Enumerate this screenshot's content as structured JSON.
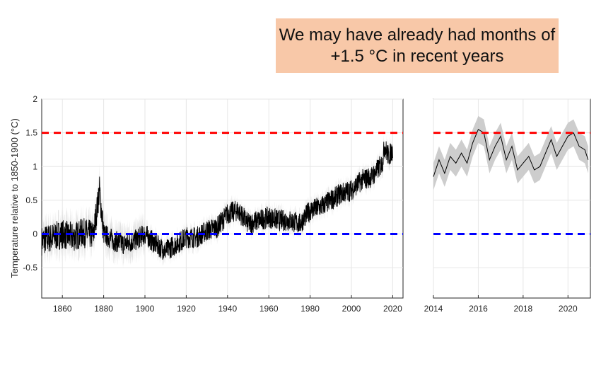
{
  "callout": {
    "line1": "We may have already had months of",
    "line2": "+1.5 °C in recent years",
    "background": "#f8c8a8"
  },
  "chart_data": [
    {
      "type": "line",
      "ylabel": "Temperature relative to 1850-1900 (°C)",
      "xlim": [
        1850,
        2025
      ],
      "ylim": [
        -0.95,
        2
      ],
      "xticks": [
        "1860",
        "1880",
        "1900",
        "1920",
        "1940",
        "1960",
        "1980",
        "2000",
        "2020"
      ],
      "yticks": [
        "2",
        "1.5",
        "1",
        "0.5",
        "0",
        "-0.5"
      ],
      "grid": true,
      "reference_lines": [
        {
          "y": 1.5,
          "color": "#ff0000",
          "style": "dashed"
        },
        {
          "y": 0,
          "color": "#0000ff",
          "style": "dashed"
        }
      ],
      "series": [
        {
          "color": "#000000",
          "uncertainty_color": "#c8c8c8",
          "x": [
            1850,
            1855,
            1860,
            1865,
            1870,
            1875,
            1878,
            1880,
            1885,
            1890,
            1895,
            1900,
            1905,
            1910,
            1915,
            1920,
            1925,
            1930,
            1935,
            1940,
            1945,
            1950,
            1955,
            1960,
            1965,
            1970,
            1975,
            1980,
            1985,
            1990,
            1995,
            2000,
            2005,
            2010,
            2015,
            2016,
            2018,
            2020
          ],
          "y": [
            -0.1,
            -0.05,
            0.0,
            -0.05,
            0.02,
            -0.02,
            0.65,
            0.0,
            -0.1,
            -0.15,
            -0.1,
            0.0,
            -0.15,
            -0.25,
            -0.15,
            -0.05,
            -0.05,
            0.05,
            0.1,
            0.3,
            0.35,
            0.15,
            0.2,
            0.25,
            0.2,
            0.2,
            0.15,
            0.35,
            0.4,
            0.5,
            0.6,
            0.65,
            0.8,
            0.85,
            1.05,
            1.3,
            1.15,
            1.25
          ]
        }
      ]
    },
    {
      "type": "line",
      "xlim": [
        2014,
        2021
      ],
      "ylim": [
        -0.95,
        2
      ],
      "xticks": [
        "2014",
        "2016",
        "2018",
        "2020"
      ],
      "grid": true,
      "reference_lines": [
        {
          "y": 1.5,
          "color": "#ff0000",
          "style": "dashed"
        },
        {
          "y": 0,
          "color": "#0000ff",
          "style": "dashed"
        }
      ],
      "series": [
        {
          "color": "#000000",
          "uncertainty_color": "#c8c8c8",
          "uncertainty": 0.2,
          "x": [
            2014.0,
            2014.25,
            2014.5,
            2014.75,
            2015.0,
            2015.25,
            2015.5,
            2015.75,
            2016.0,
            2016.25,
            2016.5,
            2016.75,
            2017.0,
            2017.25,
            2017.5,
            2017.75,
            2018.0,
            2018.25,
            2018.5,
            2018.75,
            2019.0,
            2019.25,
            2019.5,
            2019.75,
            2020.0,
            2020.25,
            2020.5,
            2020.75,
            2020.9
          ],
          "y": [
            0.85,
            1.1,
            0.9,
            1.15,
            1.05,
            1.2,
            1.05,
            1.35,
            1.55,
            1.5,
            1.1,
            1.3,
            1.45,
            1.1,
            1.3,
            0.95,
            1.05,
            1.15,
            0.95,
            1.0,
            1.2,
            1.4,
            1.15,
            1.3,
            1.45,
            1.5,
            1.3,
            1.25,
            1.1
          ]
        }
      ]
    }
  ]
}
